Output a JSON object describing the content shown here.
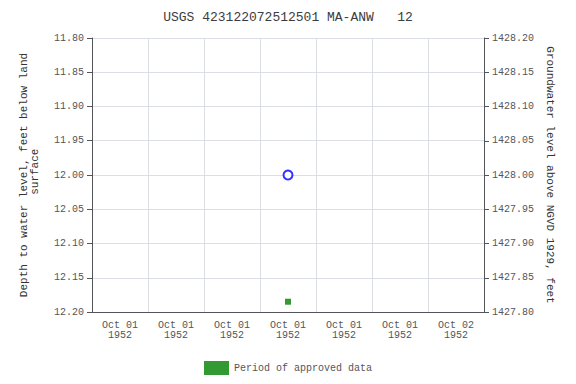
{
  "chart_data": {
    "type": "scatter",
    "title": "USGS 423122072512501 MA-ANW   12",
    "ylabel": "Depth to water level, feet below land\n surface",
    "y2label": "Groundwater level above NGVD 1929, feet",
    "categories": [
      "Oct 01\n1952",
      "Oct 01\n1952",
      "Oct 01\n1952",
      "Oct 01\n1952",
      "Oct 01\n1952",
      "Oct 01\n1952",
      "Oct 02\n1952"
    ],
    "series": [
      {
        "color": "#0000ff",
        "marker": "circle",
        "values": [
          null,
          null,
          null,
          12.0,
          null,
          null,
          null
        ]
      },
      {
        "name": "Period of approved data",
        "color": "#008000",
        "marker": "square",
        "values": [
          null,
          null,
          null,
          12.185,
          null,
          null,
          null
        ]
      }
    ],
    "ylim": [
      12.2,
      11.8
    ],
    "yticks": [
      {
        "value": 11.8,
        "label": "11.80"
      },
      11.85,
      {
        "value": 11.9,
        "label": "11.90"
      },
      11.95,
      {
        "value": 12.0,
        "label": "12.00"
      },
      12.05,
      {
        "value": 12.1,
        "label": "12.10"
      },
      12.15,
      {
        "value": 12.2,
        "label": "12.20"
      }
    ],
    "y2lim": [
      1427.8,
      1428.2
    ],
    "y2ticks": [
      {
        "value": 1427.8,
        "label": "1427.80"
      },
      1427.85,
      {
        "value": 1427.9,
        "label": "1427.90"
      },
      1427.95,
      {
        "value": 1428.0,
        "label": "1428.00"
      },
      1428.05,
      {
        "value": 1428.1,
        "label": "1428.10"
      },
      1428.15,
      {
        "value": 1428.2,
        "label": "1428.20"
      }
    ],
    "grid": true,
    "legend": "bottom"
  }
}
